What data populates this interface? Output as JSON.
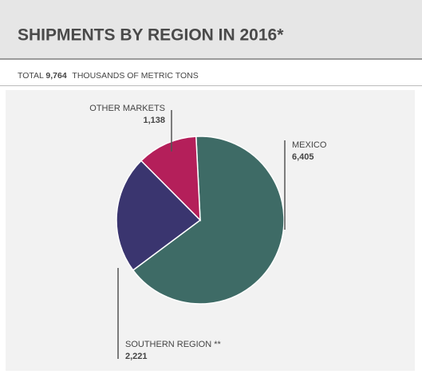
{
  "chart_data": {
    "type": "pie",
    "title": "SHIPMENTS BY REGION IN 2016*",
    "total_label": "TOTAL",
    "total": {
      "value": 9764,
      "label": "9,764"
    },
    "unit": "THOUSANDS OF METRIC TONS",
    "categories": [
      "MEXICO",
      "SOUTHERN REGION **",
      "OTHER MARKETS"
    ],
    "values": [
      6405,
      2221,
      1138
    ],
    "value_labels": [
      "6,405",
      "2,221",
      "1,138"
    ],
    "colors": [
      "#3e6b66",
      "#3a356f",
      "#b41f5a"
    ]
  }
}
